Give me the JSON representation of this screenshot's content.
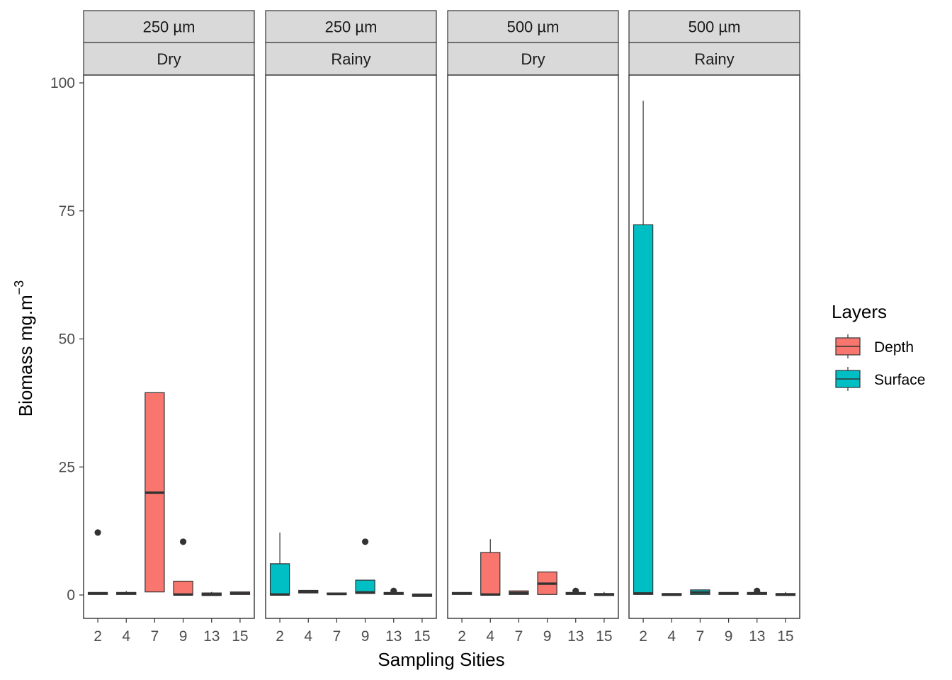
{
  "chart_data": {
    "type": "boxplot",
    "xlabel": "Sampling Sities",
    "ylabel_main": "Biomass mg.m",
    "ylabel_superscript": "−3",
    "ylim": [
      -4.5,
      107
    ],
    "yticks": [
      0,
      25,
      50,
      75,
      100
    ],
    "categories": [
      "2",
      "4",
      "7",
      "9",
      "13",
      "15"
    ],
    "legend": {
      "title": "Layers",
      "position": "right",
      "items": [
        {
          "name": "Depth",
          "color": "#F8766D"
        },
        {
          "name": "Surface",
          "color": "#00BFC4"
        }
      ]
    },
    "panels": [
      {
        "strip_top": "250 µm",
        "strip_bottom": "Dry",
        "boxes": [
          {
            "x": "2",
            "layer": "Depth",
            "q1": 0.1,
            "median": 0.3,
            "q3": 0.5,
            "lo": 0.1,
            "hi": 0.5,
            "outliers": [
              12.2
            ]
          },
          {
            "x": "4",
            "layer": "Depth",
            "q1": 0.1,
            "median": 0.3,
            "q3": 0.5,
            "lo": 0.1,
            "hi": 0.8,
            "outliers": []
          },
          {
            "x": "7",
            "layer": "Depth",
            "q1": 0.6,
            "median": 20.0,
            "q3": 39.5,
            "lo": 0.6,
            "hi": 39.5,
            "outliers": []
          },
          {
            "x": "9",
            "layer": "Depth",
            "q1": 0.0,
            "median": 0.1,
            "q3": 2.7,
            "lo": 0.0,
            "hi": 2.7,
            "outliers": [
              10.4
            ]
          },
          {
            "x": "13",
            "layer": "Depth",
            "q1": -0.1,
            "median": 0.1,
            "q3": 0.4,
            "lo": -0.1,
            "hi": 0.6,
            "outliers": []
          },
          {
            "x": "15",
            "layer": "Depth",
            "q1": 0.1,
            "median": 0.3,
            "q3": 0.6,
            "lo": 0.1,
            "hi": 0.6,
            "outliers": []
          }
        ]
      },
      {
        "strip_top": "250 µm",
        "strip_bottom": "Rainy",
        "boxes": [
          {
            "x": "2",
            "layer": "Surface",
            "q1": 0.0,
            "median": 0.1,
            "q3": 6.1,
            "lo": 0.0,
            "hi": 12.2,
            "outliers": []
          },
          {
            "x": "4",
            "layer": "Surface",
            "q1": 0.4,
            "median": 0.6,
            "q3": 0.9,
            "lo": 0.4,
            "hi": 0.9,
            "outliers": []
          },
          {
            "x": "7",
            "layer": "Surface",
            "q1": 0.1,
            "median": 0.2,
            "q3": 0.4,
            "lo": 0.1,
            "hi": 0.4,
            "outliers": []
          },
          {
            "x": "9",
            "layer": "Surface",
            "q1": 0.3,
            "median": 0.5,
            "q3": 2.9,
            "lo": 0.3,
            "hi": 2.9,
            "outliers": [
              10.4
            ]
          },
          {
            "x": "13",
            "layer": "Surface",
            "q1": 0.1,
            "median": 0.3,
            "q3": 0.5,
            "lo": 0.1,
            "hi": 0.5,
            "outliers": [
              0.8
            ]
          },
          {
            "x": "15",
            "layer": "Surface",
            "q1": -0.3,
            "median": -0.1,
            "q3": 0.2,
            "lo": -0.3,
            "hi": 0.2,
            "outliers": []
          }
        ]
      },
      {
        "strip_top": "500 µm",
        "strip_bottom": "Dry",
        "boxes": [
          {
            "x": "2",
            "layer": "Depth",
            "q1": 0.1,
            "median": 0.3,
            "q3": 0.5,
            "lo": 0.1,
            "hi": 0.5,
            "outliers": []
          },
          {
            "x": "4",
            "layer": "Depth",
            "q1": 0.0,
            "median": 0.1,
            "q3": 8.3,
            "lo": 0.0,
            "hi": 10.9,
            "outliers": []
          },
          {
            "x": "7",
            "layer": "Depth",
            "q1": 0.1,
            "median": 0.4,
            "q3": 0.8,
            "lo": 0.1,
            "hi": 0.8,
            "outliers": []
          },
          {
            "x": "9",
            "layer": "Depth",
            "q1": 0.1,
            "median": 2.2,
            "q3": 4.5,
            "lo": 0.1,
            "hi": 4.5,
            "outliers": []
          },
          {
            "x": "13",
            "layer": "Depth",
            "q1": 0.1,
            "median": 0.3,
            "q3": 0.5,
            "lo": 0.1,
            "hi": 0.5,
            "outliers": [
              0.8
            ]
          },
          {
            "x": "15",
            "layer": "Depth",
            "q1": -0.1,
            "median": 0.1,
            "q3": 0.3,
            "lo": -0.1,
            "hi": 0.6,
            "outliers": []
          }
        ]
      },
      {
        "strip_top": "500 µm",
        "strip_bottom": "Rainy",
        "boxes": [
          {
            "x": "2",
            "layer": "Surface",
            "q1": 0.1,
            "median": 0.3,
            "q3": 72.3,
            "lo": 0.1,
            "hi": 96.5,
            "outliers": []
          },
          {
            "x": "4",
            "layer": "Surface",
            "q1": -0.1,
            "median": 0.1,
            "q3": 0.3,
            "lo": -0.1,
            "hi": 0.3,
            "outliers": []
          },
          {
            "x": "7",
            "layer": "Surface",
            "q1": 0.1,
            "median": 0.5,
            "q3": 1.0,
            "lo": 0.1,
            "hi": 1.0,
            "outliers": []
          },
          {
            "x": "9",
            "layer": "Surface",
            "q1": 0.1,
            "median": 0.3,
            "q3": 0.5,
            "lo": 0.1,
            "hi": 0.5,
            "outliers": []
          },
          {
            "x": "13",
            "layer": "Surface",
            "q1": 0.1,
            "median": 0.3,
            "q3": 0.5,
            "lo": 0.1,
            "hi": 0.5,
            "outliers": [
              0.8
            ]
          },
          {
            "x": "15",
            "layer": "Surface",
            "q1": -0.1,
            "median": 0.1,
            "q3": 0.3,
            "lo": -0.1,
            "hi": 0.6,
            "outliers": []
          }
        ]
      }
    ]
  }
}
